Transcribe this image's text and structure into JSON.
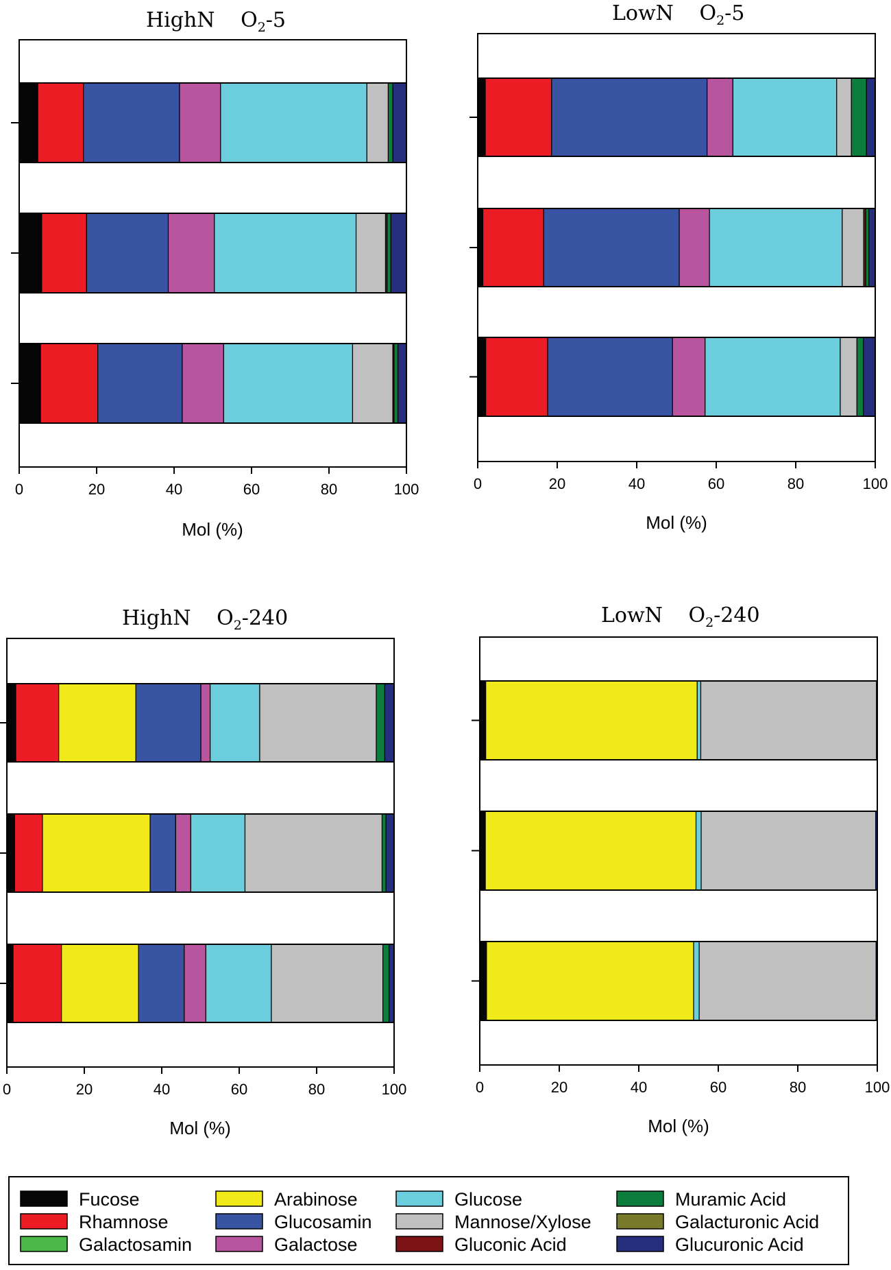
{
  "chart_data": {
    "type": "stacked-horizontal-bar",
    "xlabel": "Mol (%)",
    "xlim": [
      0,
      100
    ],
    "xticks": [
      0,
      20,
      40,
      60,
      80,
      100
    ],
    "components": [
      {
        "name": "Fucose",
        "color": "#050505"
      },
      {
        "name": "Rhamnose",
        "color": "#ec1c24"
      },
      {
        "name": "Galactosamin",
        "color": "#4cb847"
      },
      {
        "name": "Arabinose",
        "color": "#f1ea1a"
      },
      {
        "name": "Glucosamin",
        "color": "#3a54a4"
      },
      {
        "name": "Galactose",
        "color": "#b9549f"
      },
      {
        "name": "Glucose",
        "color": "#6ccddc"
      },
      {
        "name": "Mannose/Xylose",
        "color": "#c0c0c0"
      },
      {
        "name": "Gluconic Acid",
        "color": "#7c1416"
      },
      {
        "name": "Muramic Acid",
        "color": "#0d7d3d"
      },
      {
        "name": "Galacturonic Acid",
        "color": "#7a7a2c"
      },
      {
        "name": "Glucuronic Acid",
        "color": "#262f7d"
      }
    ],
    "panels": [
      {
        "title_main": "HighN",
        "title_o": "O",
        "title_sub": "2",
        "title_suffix": "-5",
        "bars": [
          [
            4.8,
            11.8,
            0,
            0,
            24.8,
            10.6,
            37.8,
            5.5,
            0,
            1.2,
            0,
            3.5
          ],
          [
            5.8,
            11.6,
            0,
            0,
            21.1,
            11.9,
            36.6,
            7.6,
            0.4,
            1.0,
            0,
            4.0
          ],
          [
            5.5,
            14.8,
            0,
            0,
            21.8,
            10.7,
            33.3,
            10.4,
            0.3,
            1.0,
            0,
            2.2
          ]
        ]
      },
      {
        "title_main": "LowN",
        "title_o": "O",
        "title_sub": "2",
        "title_suffix": "-5",
        "bars": [
          [
            1.9,
            16.7,
            0,
            0,
            39.1,
            6.5,
            26.1,
            3.7,
            0,
            3.8,
            0,
            2.2
          ],
          [
            1.3,
            15.3,
            0,
            0,
            34.1,
            7.6,
            33.4,
            5.4,
            0.5,
            0.8,
            0,
            1.6
          ],
          [
            2.0,
            15.6,
            0,
            0,
            31.4,
            8.2,
            34.0,
            4.2,
            0,
            1.6,
            0,
            3.0
          ]
        ]
      },
      {
        "title_main": "HighN",
        "title_o": "O",
        "title_sub": "2",
        "title_suffix": "-240",
        "bars": [
          [
            2.3,
            11.1,
            0,
            19.9,
            16.8,
            2.4,
            12.8,
            30.1,
            0,
            2.2,
            0,
            2.4
          ],
          [
            2.0,
            7.2,
            0,
            27.8,
            6.6,
            3.9,
            14.0,
            35.4,
            0,
            1.0,
            0,
            2.1
          ],
          [
            1.6,
            12.5,
            0,
            19.9,
            11.8,
            5.6,
            16.9,
            28.8,
            0,
            1.6,
            0,
            1.3
          ]
        ]
      },
      {
        "title_main": "LowN",
        "title_o": "O",
        "title_sub": "2",
        "title_suffix": "-240",
        "bars": [
          [
            1.5,
            0,
            0,
            53.2,
            0,
            0,
            0.9,
            44.2,
            0,
            0,
            0,
            0.2
          ],
          [
            1.4,
            0,
            0,
            53.0,
            0,
            0,
            1.3,
            43.9,
            0,
            0,
            0,
            0.4
          ],
          [
            1.7,
            0,
            0,
            52.1,
            0,
            0,
            1.4,
            44.5,
            0,
            0,
            0,
            0.3
          ]
        ]
      }
    ]
  }
}
